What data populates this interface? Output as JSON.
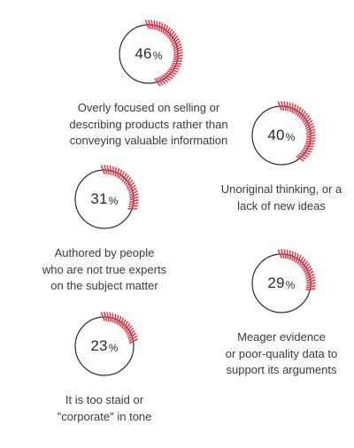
{
  "colors": {
    "accent": "#d9404f",
    "ring": "#2b2b2b",
    "text": "#3a3a3a"
  },
  "chart_data": {
    "type": "donut-stats",
    "unit": "%",
    "items": [
      {
        "value": 46,
        "label": [
          "Overly focused on selling or",
          "describing products rather than",
          "conveying valuable information"
        ]
      },
      {
        "value": 40,
        "label": [
          "Unoriginal thinking, or a",
          "lack of new ideas"
        ]
      },
      {
        "value": 31,
        "label": [
          "Authored by people",
          "who are not true experts",
          "on the subject matter"
        ]
      },
      {
        "value": 29,
        "label": [
          "Meager evidence",
          "or poor-quality data to",
          "support its arguments"
        ]
      },
      {
        "value": 23,
        "label": [
          "It is too staid or",
          "\"corporate\" in tone"
        ]
      }
    ]
  }
}
